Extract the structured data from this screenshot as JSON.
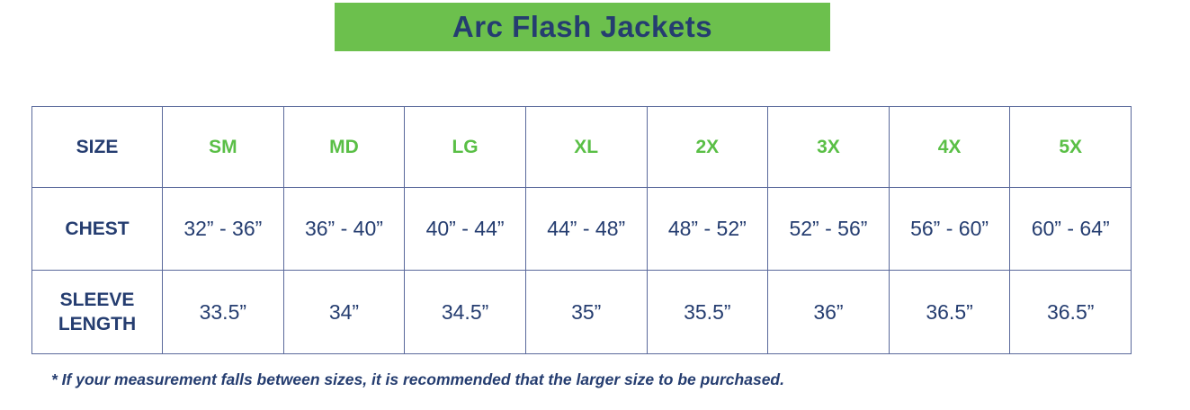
{
  "chart_data": {
    "type": "table",
    "title": "Arc Flash Jackets",
    "columns": [
      "SIZE",
      "SM",
      "MD",
      "LG",
      "XL",
      "2X",
      "3X",
      "4X",
      "5X"
    ],
    "rows": [
      [
        "CHEST",
        "32” - 36”",
        "36” - 40”",
        "40” - 44”",
        "44” - 48”",
        "48” - 52”",
        "52” - 56”",
        "56” - 60”",
        "60” - 64”"
      ],
      [
        "SLEEVE LENGTH",
        "33.5”",
        "34”",
        "34.5”",
        "35”",
        "35.5”",
        "36”",
        "36.5”",
        "36.5”"
      ]
    ],
    "footnote": "* If your measurement falls between sizes, it is recommended that the larger size to be purchased.",
    "layout_hints": {
      "grid": "on",
      "header_row_green_labels": true
    }
  },
  "colors": {
    "banner_green": "#6cc04d",
    "size_text_green": "#5abf46",
    "navy": "#253d70",
    "border_blue": "#5a699b",
    "background": "#ffffff"
  }
}
